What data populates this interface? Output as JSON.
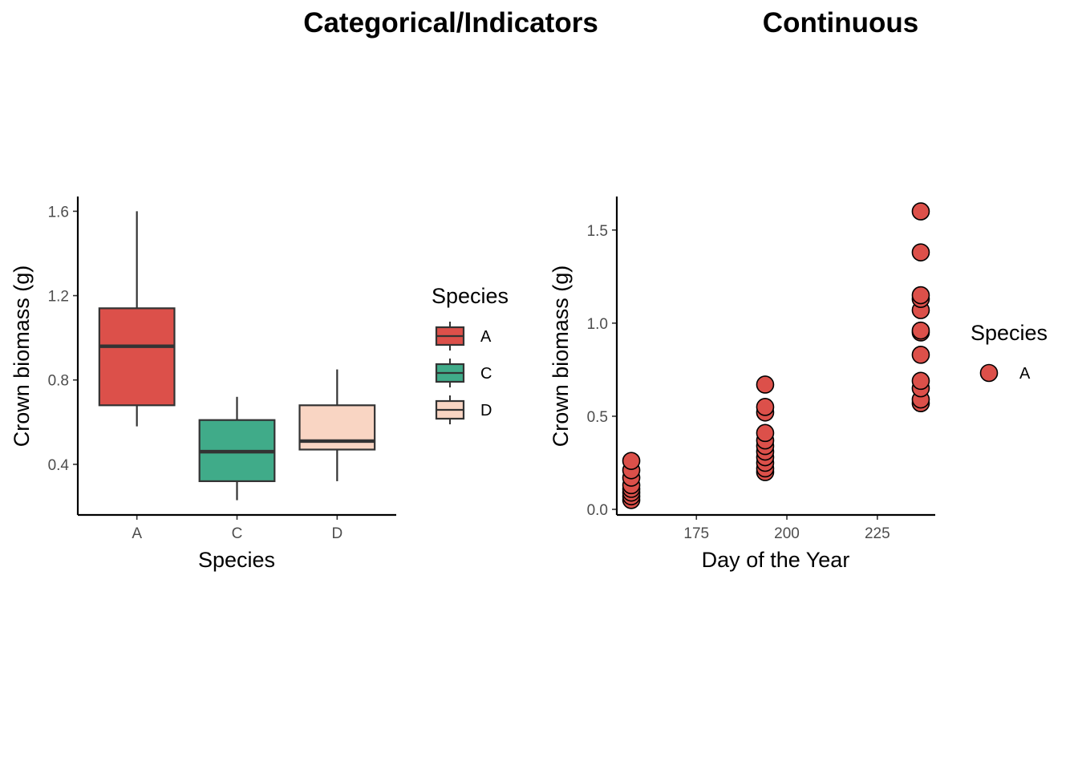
{
  "chart_data": [
    {
      "type": "box",
      "title": "Categorical/Indicators",
      "xlabel": "Species",
      "ylabel": "Crown biomass (g)",
      "ylim": [
        0.16,
        1.67
      ],
      "yticks": [
        0.4,
        0.8,
        1.2,
        1.6
      ],
      "categories": [
        "A",
        "C",
        "D"
      ],
      "boxes": [
        {
          "category": "A",
          "min": 0.58,
          "q1": 0.68,
          "median": 0.96,
          "q3": 1.14,
          "max": 1.6,
          "fill": "#DC504A"
        },
        {
          "category": "C",
          "min": 0.23,
          "q1": 0.32,
          "median": 0.46,
          "q3": 0.61,
          "max": 0.72,
          "fill": "#40AB89"
        },
        {
          "category": "D",
          "min": 0.32,
          "q1": 0.47,
          "median": 0.51,
          "q3": 0.68,
          "max": 0.85,
          "fill": "#F9D5C3"
        }
      ],
      "legend": {
        "title": "Species",
        "entries": [
          "A",
          "C",
          "D"
        ],
        "position": "right"
      },
      "grid": false
    },
    {
      "type": "scatter",
      "title": "Continuous",
      "xlabel": "Day of the Year",
      "ylabel": "Crown biomass (g)",
      "xlim": [
        153,
        241
      ],
      "ylim": [
        -0.03,
        1.68
      ],
      "xticks": [
        175,
        200,
        225
      ],
      "yticks": [
        0.0,
        0.5,
        1.0,
        1.5
      ],
      "series": [
        {
          "name": "A",
          "color": "#DC504A",
          "points": [
            {
              "x": 157,
              "y": 0.05
            },
            {
              "x": 157,
              "y": 0.07
            },
            {
              "x": 157,
              "y": 0.09
            },
            {
              "x": 157,
              "y": 0.11
            },
            {
              "x": 157,
              "y": 0.13
            },
            {
              "x": 157,
              "y": 0.17
            },
            {
              "x": 157,
              "y": 0.21
            },
            {
              "x": 157,
              "y": 0.26
            },
            {
              "x": 194,
              "y": 0.2
            },
            {
              "x": 194,
              "y": 0.22
            },
            {
              "x": 194,
              "y": 0.25
            },
            {
              "x": 194,
              "y": 0.28
            },
            {
              "x": 194,
              "y": 0.31
            },
            {
              "x": 194,
              "y": 0.34
            },
            {
              "x": 194,
              "y": 0.37
            },
            {
              "x": 194,
              "y": 0.41
            },
            {
              "x": 194,
              "y": 0.52
            },
            {
              "x": 194,
              "y": 0.55
            },
            {
              "x": 194,
              "y": 0.67
            },
            {
              "x": 237,
              "y": 0.57
            },
            {
              "x": 237,
              "y": 0.59
            },
            {
              "x": 237,
              "y": 0.65
            },
            {
              "x": 237,
              "y": 0.69
            },
            {
              "x": 237,
              "y": 0.83
            },
            {
              "x": 237,
              "y": 0.95
            },
            {
              "x": 237,
              "y": 0.96
            },
            {
              "x": 237,
              "y": 1.07
            },
            {
              "x": 237,
              "y": 1.13
            },
            {
              "x": 237,
              "y": 1.15
            },
            {
              "x": 237,
              "y": 1.38
            },
            {
              "x": 237,
              "y": 1.6
            }
          ]
        }
      ],
      "legend": {
        "title": "Species",
        "entries": [
          "A"
        ],
        "position": "right"
      },
      "grid": false
    }
  ]
}
